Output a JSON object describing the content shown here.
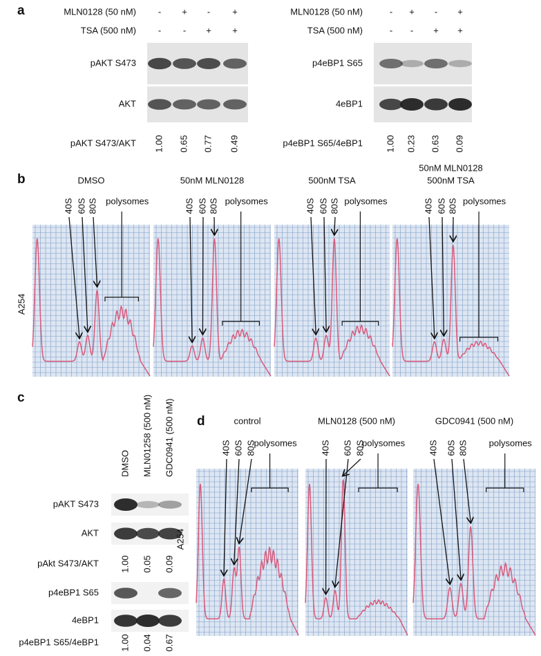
{
  "panel_a": {
    "label": "a",
    "left": {
      "treatments": [
        {
          "name": "MLN0128 (50 nM)",
          "signs": [
            "-",
            "+",
            "-",
            "+"
          ]
        },
        {
          "name": "TSA (500 nM)",
          "signs": [
            "-",
            "-",
            "+",
            "+"
          ]
        }
      ],
      "blots": [
        "pAKT S473",
        "AKT"
      ],
      "ratio_label": "pAKT S473/AKT",
      "ratios": [
        "1.00",
        "0.65",
        "0.77",
        "0.49"
      ]
    },
    "right": {
      "treatments": [
        {
          "name": "MLN0128 (50 nM)",
          "signs": [
            "-",
            "+",
            "-",
            "+"
          ]
        },
        {
          "name": "TSA (500 nM)",
          "signs": [
            "-",
            "-",
            "+",
            "+"
          ]
        }
      ],
      "blots": [
        "p4eBP1 S65",
        "4eBP1"
      ],
      "ratio_label": "p4eBP1 S65/4eBP1",
      "ratios": [
        "1.00",
        "0.23",
        "0.63",
        "0.09"
      ]
    }
  },
  "panel_b": {
    "label": "b",
    "y_label": "A254",
    "profiles": [
      {
        "title": [
          "DMSO"
        ],
        "peaks": [
          "40S",
          "60S",
          "80S"
        ],
        "polysomes": "polysomes"
      },
      {
        "title": [
          "50nM MLN0128"
        ],
        "peaks": [
          "40S",
          "60S",
          "80S"
        ],
        "polysomes": "polysomes"
      },
      {
        "title": [
          "500nM TSA"
        ],
        "peaks": [
          "40S",
          "60S",
          "80S"
        ],
        "polysomes": "polysomes"
      },
      {
        "title": [
          "50nM MLN0128",
          "500nM TSA"
        ],
        "peaks": [
          "40S",
          "60S",
          "80S"
        ],
        "polysomes": "polysomes"
      }
    ]
  },
  "panel_c": {
    "label": "c",
    "lanes": [
      "DMSO",
      "MLN01258 (500 nM)",
      "GDC0941 (500 nM)"
    ],
    "rows": [
      {
        "label": "pAKT S473"
      },
      {
        "label": "AKT"
      },
      {
        "label": "pAkt S473/AKT",
        "ratios": [
          "1.00",
          "0.05",
          "0.09"
        ]
      },
      {
        "label": "p4eBP1 S65"
      },
      {
        "label": "4eBP1"
      },
      {
        "label": "p4eBP1 S65/4eBP1",
        "ratios": [
          "1.00",
          "0.04",
          "0.67"
        ]
      }
    ]
  },
  "panel_d": {
    "label": "d",
    "y_label": "A254",
    "profiles": [
      {
        "title": [
          "control"
        ],
        "peaks": [
          "40S",
          "60S",
          "80S"
        ],
        "polysomes": "polysomes"
      },
      {
        "title": [
          "MLN0128 (500 nM)"
        ],
        "peaks": [
          "40S",
          "60S",
          "80S"
        ],
        "polysomes": "polysomes"
      },
      {
        "title": [
          "GDC0941 (500 nM)"
        ],
        "peaks": [
          "40S",
          "60S",
          "80S"
        ],
        "polysomes": "polysomes"
      }
    ]
  }
}
